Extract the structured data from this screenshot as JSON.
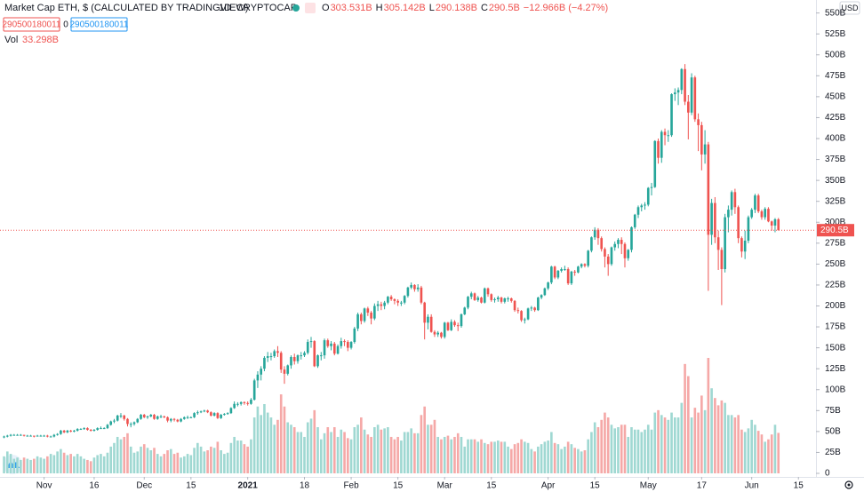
{
  "chart_data": {
    "type": "candlestick",
    "title": "Market Cap ETH, $ (CALCULATED BY TRADINGVIEW)",
    "interval": "1D",
    "exchange": "CRYPTOCAP",
    "ohlc_legend": [
      {
        "key": "O",
        "text": "303.531B"
      },
      {
        "key": "H",
        "text": "305.142B"
      },
      {
        "key": "L",
        "text": "290.138B"
      },
      {
        "key": "C",
        "text": "290.5B"
      }
    ],
    "change": "−12.966B (−4.27%)",
    "buttons": [
      "290500180011",
      "0",
      "290500180011"
    ],
    "volume_label": "Vol",
    "volume_last": "33.298B",
    "currency": "USD",
    "last_price_label": "290.5B",
    "up_color": "#26a69a",
    "down_color": "#ef5350",
    "volume_up_color": "#9fd8d2",
    "volume_down_color": "#f5a8a7",
    "ylim": [
      0,
      550
    ],
    "yticks": [
      0,
      {
        "value": 25,
        "label": "25B"
      },
      {
        "value": 50,
        "label": "50B"
      },
      {
        "value": 75,
        "label": "75B"
      },
      {
        "value": 100,
        "label": "100B"
      },
      {
        "value": 125,
        "label": "125B"
      },
      {
        "value": 150,
        "label": "150B"
      },
      {
        "value": 175,
        "label": "175B"
      },
      {
        "value": 200,
        "label": "200B"
      },
      {
        "value": 225,
        "label": "225B"
      },
      {
        "value": 250,
        "label": "250B"
      },
      {
        "value": 275,
        "label": "275B"
      },
      {
        "value": 300,
        "label": "300B"
      },
      {
        "value": 325,
        "label": "325B"
      },
      {
        "value": 350,
        "label": "350B"
      },
      {
        "value": 375,
        "label": "375B"
      },
      {
        "value": 400,
        "label": "400B"
      },
      {
        "value": 425,
        "label": "425B"
      },
      {
        "value": 450,
        "label": "450B"
      },
      {
        "value": 475,
        "label": "475B"
      },
      {
        "value": 500,
        "label": "500B"
      },
      {
        "value": 525,
        "label": "525B"
      },
      {
        "value": 550,
        "label": "550B"
      }
    ],
    "xlim": [
      -0.6,
      240.6
    ],
    "xticks": [
      {
        "value": 12,
        "label": "Nov"
      },
      {
        "value": 27,
        "label": "16"
      },
      {
        "value": 42,
        "label": "Dec"
      },
      {
        "value": 56,
        "label": "15"
      },
      {
        "value": 73,
        "label": "2021"
      },
      {
        "value": 90,
        "label": "18"
      },
      {
        "value": 104,
        "label": "Feb"
      },
      {
        "value": 118,
        "label": "15"
      },
      {
        "value": 132,
        "label": "Mar"
      },
      {
        "value": 146,
        "label": "15"
      },
      {
        "value": 163,
        "label": "Apr"
      },
      {
        "value": 177,
        "label": "15"
      },
      {
        "value": 193,
        "label": "May"
      },
      {
        "value": 209,
        "label": "17"
      },
      {
        "value": 224,
        "label": "Jun"
      },
      {
        "value": 238,
        "label": "15"
      }
    ],
    "open": [
      43,
      44,
      45,
      46,
      46,
      46,
      46,
      45,
      45,
      45,
      44,
      45,
      45,
      45,
      44,
      44,
      46,
      47,
      51,
      49,
      51,
      50,
      51,
      53,
      53,
      54,
      52,
      51,
      52,
      54,
      54,
      54,
      58,
      62,
      63,
      69,
      69,
      65,
      59,
      59,
      61,
      65,
      70,
      67,
      68,
      70,
      65,
      68,
      68,
      67,
      63,
      65,
      64,
      62,
      65,
      67,
      67,
      67,
      72,
      73,
      74,
      75,
      73,
      69,
      72,
      66,
      70,
      71,
      72,
      78,
      83,
      83,
      85,
      84,
      83,
      88,
      111,
      118,
      125,
      138,
      140,
      140,
      146,
      144,
      124,
      119,
      129,
      139,
      134,
      141,
      141,
      144,
      157,
      158,
      128,
      141,
      141,
      159,
      152,
      155,
      143,
      152,
      158,
      157,
      150,
      157,
      173,
      190,
      182,
      197,
      192,
      185,
      200,
      202,
      200,
      204,
      211,
      208,
      206,
      204,
      204,
      212,
      222,
      225,
      220,
      222,
      204,
      180,
      187,
      169,
      166,
      168,
      163,
      180,
      171,
      181,
      177,
      176,
      190,
      198,
      211,
      215,
      207,
      210,
      204,
      221,
      214,
      207,
      208,
      210,
      205,
      209,
      209,
      206,
      195,
      194,
      183,
      184,
      197,
      198,
      195,
      210,
      213,
      221,
      228,
      247,
      234,
      242,
      244,
      244,
      227,
      241,
      240,
      247,
      250,
      248,
      266,
      282,
      291,
      281,
      268,
      259,
      250,
      270,
      274,
      279,
      274,
      257,
      267,
      294,
      309,
      318,
      320,
      321,
      341,
      342,
      397,
      377,
      408,
      404,
      404,
      453,
      455,
      458,
      483,
      444,
      431,
      473,
      423,
      416,
      381,
      393,
      285,
      323,
      282,
      267,
      244,
      306,
      315,
      336,
      318,
      281,
      265,
      278,
      306,
      315,
      332,
      313,
      306,
      316,
      301,
      296,
      303.531
    ],
    "high": [
      45,
      46,
      47,
      47,
      47,
      47,
      46,
      46,
      46,
      45,
      46,
      46,
      46,
      46,
      45,
      47,
      48,
      52,
      52,
      52,
      52,
      52,
      54,
      54,
      55,
      55,
      53,
      53,
      55,
      56,
      55,
      59,
      63,
      65,
      70,
      72,
      70,
      66,
      61,
      62,
      66,
      71,
      71,
      69,
      71,
      71,
      69,
      70,
      69,
      68,
      66,
      66,
      65,
      66,
      68,
      69,
      68,
      73,
      75,
      75,
      76,
      76,
      74,
      73,
      73,
      71,
      72,
      73,
      79,
      86,
      85,
      86,
      86,
      86,
      90,
      113,
      122,
      128,
      140,
      145,
      144,
      148,
      152,
      146,
      128,
      130,
      141,
      143,
      142,
      145,
      146,
      160,
      163,
      159,
      142,
      145,
      161,
      161,
      158,
      157,
      154,
      162,
      160,
      159,
      158,
      175,
      192,
      192,
      198,
      199,
      194,
      203,
      206,
      205,
      206,
      212,
      213,
      209,
      208,
      206,
      213,
      223,
      228,
      226,
      226,
      224,
      205,
      190,
      190,
      171,
      170,
      169,
      181,
      181,
      184,
      183,
      180,
      191,
      199,
      212,
      217,
      216,
      212,
      211,
      222,
      222,
      215,
      210,
      212,
      211,
      210,
      211,
      210,
      207,
      198,
      195,
      186,
      198,
      200,
      199,
      211,
      214,
      222,
      229,
      248,
      248,
      243,
      246,
      248,
      246,
      242,
      243,
      248,
      251,
      251,
      267,
      283,
      294,
      293,
      283,
      270,
      262,
      271,
      277,
      281,
      282,
      276,
      268,
      295,
      310,
      320,
      322,
      324,
      342,
      347,
      398,
      400,
      410,
      412,
      410,
      454,
      460,
      461,
      484,
      489,
      452,
      478,
      475,
      430,
      420,
      410,
      396,
      328,
      330,
      290,
      270,
      310,
      320,
      338,
      340,
      320,
      283,
      290,
      308,
      317,
      334,
      334,
      315,
      318,
      318,
      302,
      305,
      305.142
    ],
    "low": [
      42,
      43,
      44,
      45,
      45,
      45,
      44,
      44,
      44,
      43,
      44,
      44,
      44,
      43,
      43,
      43,
      45,
      46,
      48,
      48,
      49,
      49,
      50,
      52,
      52,
      51,
      50,
      50,
      51,
      53,
      53,
      53,
      57,
      60,
      62,
      66,
      63,
      56,
      55,
      57,
      60,
      64,
      66,
      65,
      67,
      64,
      64,
      66,
      66,
      61,
      61,
      62,
      61,
      61,
      64,
      65,
      66,
      66,
      70,
      72,
      73,
      72,
      68,
      68,
      65,
      65,
      69,
      70,
      71,
      77,
      80,
      81,
      82,
      81,
      82,
      87,
      102,
      111,
      122,
      133,
      135,
      138,
      139,
      120,
      107,
      117,
      125,
      130,
      131,
      136,
      139,
      142,
      150,
      127,
      126,
      135,
      137,
      150,
      147,
      141,
      142,
      149,
      152,
      146,
      148,
      155,
      170,
      178,
      180,
      188,
      178,
      183,
      194,
      195,
      196,
      202,
      206,
      202,
      200,
      200,
      202,
      210,
      220,
      217,
      217,
      202,
      160,
      172,
      168,
      163,
      163,
      161,
      161,
      170,
      170,
      175,
      170,
      174,
      189,
      196,
      208,
      206,
      205,
      203,
      203,
      211,
      205,
      204,
      205,
      203,
      203,
      205,
      204,
      193,
      191,
      181,
      179,
      183,
      194,
      193,
      194,
      208,
      212,
      219,
      226,
      232,
      232,
      240,
      242,
      225,
      225,
      236,
      239,
      245,
      246,
      246,
      264,
      279,
      273,
      265,
      246,
      236,
      248,
      266,
      269,
      262,
      246,
      254,
      264,
      292,
      305,
      313,
      315,
      319,
      332,
      341,
      370,
      371,
      392,
      396,
      402,
      445,
      440,
      453,
      440,
      399,
      428,
      420,
      385,
      362,
      370,
      218,
      273,
      275,
      243,
      201,
      240,
      288,
      308,
      310,
      275,
      258,
      256,
      275,
      304,
      311,
      311,
      303,
      303,
      300,
      290,
      288,
      290.138
    ],
    "close": [
      44,
      45,
      46,
      46,
      46,
      46,
      45,
      45,
      45,
      44,
      45,
      45,
      45,
      44,
      44,
      46,
      47,
      51,
      49,
      51,
      50,
      51,
      53,
      53,
      54,
      52,
      51,
      52,
      54,
      54,
      54,
      58,
      62,
      63,
      69,
      69,
      65,
      59,
      59,
      61,
      65,
      70,
      67,
      68,
      70,
      65,
      68,
      68,
      67,
      63,
      65,
      64,
      62,
      65,
      67,
      67,
      67,
      72,
      73,
      74,
      75,
      73,
      69,
      72,
      66,
      70,
      71,
      72,
      78,
      83,
      83,
      85,
      84,
      83,
      88,
      111,
      118,
      125,
      138,
      140,
      140,
      146,
      144,
      124,
      119,
      129,
      139,
      134,
      141,
      141,
      144,
      157,
      158,
      128,
      141,
      141,
      159,
      152,
      155,
      143,
      152,
      158,
      157,
      150,
      157,
      173,
      190,
      182,
      197,
      192,
      185,
      200,
      202,
      200,
      204,
      211,
      208,
      206,
      204,
      204,
      212,
      222,
      225,
      220,
      222,
      204,
      180,
      187,
      169,
      166,
      168,
      163,
      180,
      171,
      181,
      177,
      176,
      190,
      198,
      211,
      215,
      207,
      210,
      204,
      221,
      214,
      207,
      208,
      210,
      205,
      209,
      209,
      206,
      195,
      194,
      183,
      184,
      197,
      198,
      195,
      210,
      213,
      221,
      228,
      247,
      234,
      242,
      244,
      244,
      227,
      241,
      240,
      247,
      250,
      248,
      266,
      282,
      291,
      281,
      268,
      259,
      250,
      270,
      274,
      279,
      274,
      257,
      267,
      294,
      309,
      318,
      320,
      321,
      341,
      342,
      397,
      377,
      408,
      404,
      404,
      453,
      455,
      458,
      483,
      444,
      431,
      473,
      423,
      416,
      381,
      393,
      285,
      323,
      282,
      267,
      244,
      306,
      315,
      336,
      318,
      281,
      265,
      278,
      306,
      315,
      332,
      313,
      306,
      316,
      301,
      296,
      303.5,
      290.5
    ],
    "volume": [
      14,
      18,
      16,
      12,
      13,
      11,
      13,
      12,
      11,
      12,
      14,
      13,
      12,
      14,
      16,
      15,
      18,
      20,
      17,
      15,
      16,
      14,
      16,
      14,
      12,
      11,
      10,
      13,
      15,
      16,
      14,
      17,
      22,
      25,
      30,
      28,
      30,
      33,
      22,
      17,
      18,
      22,
      24,
      21,
      19,
      21,
      16,
      14,
      16,
      19,
      20,
      16,
      17,
      13,
      14,
      16,
      15,
      21,
      25,
      22,
      18,
      19,
      22,
      21,
      26,
      19,
      16,
      17,
      25,
      30,
      27,
      27,
      24,
      22,
      28,
      46,
      55,
      48,
      57,
      50,
      46,
      40,
      44,
      65,
      55,
      42,
      40,
      38,
      34,
      34,
      30,
      42,
      45,
      52,
      38,
      28,
      33,
      38,
      34,
      38,
      30,
      36,
      34,
      29,
      28,
      38,
      40,
      46,
      36,
      32,
      30,
      38,
      40,
      36,
      37,
      38,
      30,
      28,
      30,
      27,
      34,
      34,
      37,
      33,
      33,
      48,
      55,
      40,
      40,
      44,
      30,
      28,
      30,
      31,
      28,
      30,
      33,
      30,
      22,
      28,
      28,
      28,
      26,
      28,
      25,
      24,
      26,
      26,
      27,
      26,
      26,
      22,
      20,
      24,
      25,
      28,
      26,
      25,
      20,
      18,
      22,
      24,
      26,
      27,
      34,
      25,
      24,
      20,
      22,
      26,
      24,
      21,
      20,
      18,
      19,
      28,
      34,
      42,
      38,
      44,
      50,
      46,
      40,
      37,
      38,
      40,
      40,
      30,
      38,
      36,
      36,
      34,
      36,
      40,
      36,
      50,
      52,
      48,
      46,
      44,
      50,
      46,
      46,
      58,
      90,
      80,
      46,
      54,
      50,
      64,
      52,
      95,
      70,
      62,
      56,
      60,
      58,
      48,
      48,
      46,
      48,
      36,
      34,
      37,
      44,
      40,
      35,
      32,
      26,
      28,
      32,
      40,
      33.298
    ]
  }
}
